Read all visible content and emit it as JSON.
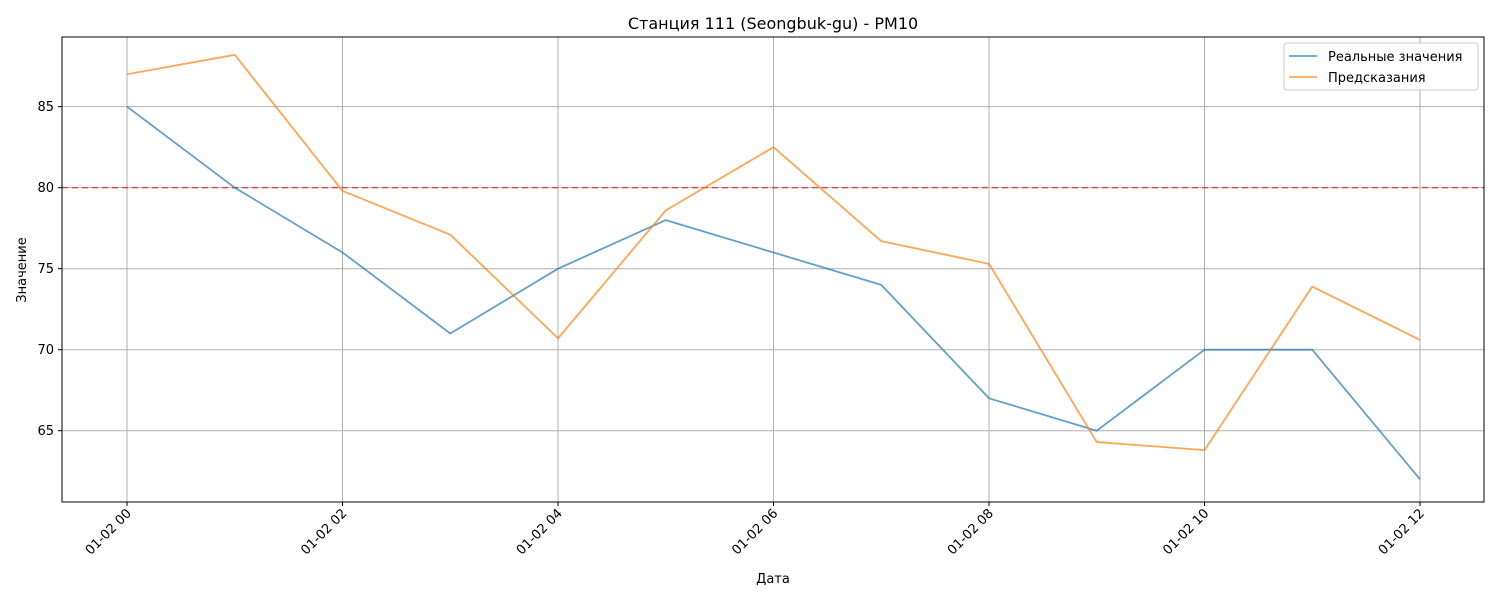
{
  "chart_data": {
    "type": "line",
    "title": "Станция 111 (Seongbuk-gu) - PM10",
    "xlabel": "Дата",
    "ylabel": "Значение",
    "x": [
      "01-02 00",
      "01-02 01",
      "01-02 02",
      "01-02 03",
      "01-02 04",
      "01-02 05",
      "01-02 06",
      "01-02 07",
      "01-02 08",
      "01-02 09",
      "01-02 10",
      "01-02 11",
      "01-02 12"
    ],
    "xticks": [
      "01-02 00",
      "01-02 02",
      "01-02 04",
      "01-02 06",
      "01-02 08",
      "01-02 10",
      "01-02 12"
    ],
    "yticks": [
      65,
      70,
      75,
      80,
      85
    ],
    "ylim": [
      60.6,
      89.3
    ],
    "grid": true,
    "legend_position": "top-right",
    "series": [
      {
        "name": "Реальные значения",
        "color": "#1f77b4",
        "values": [
          85,
          80,
          76,
          71,
          75,
          78,
          76,
          74,
          67,
          65,
          70,
          70,
          62
        ]
      },
      {
        "name": "Предсказания",
        "color": "#ff7f0e",
        "values": [
          87.0,
          88.2,
          79.8,
          77.1,
          70.7,
          78.6,
          82.5,
          76.7,
          75.3,
          64.3,
          63.8,
          73.9,
          70.6
        ]
      }
    ],
    "threshold": {
      "value": 80,
      "color": "#d62728",
      "style": "dashed"
    }
  }
}
